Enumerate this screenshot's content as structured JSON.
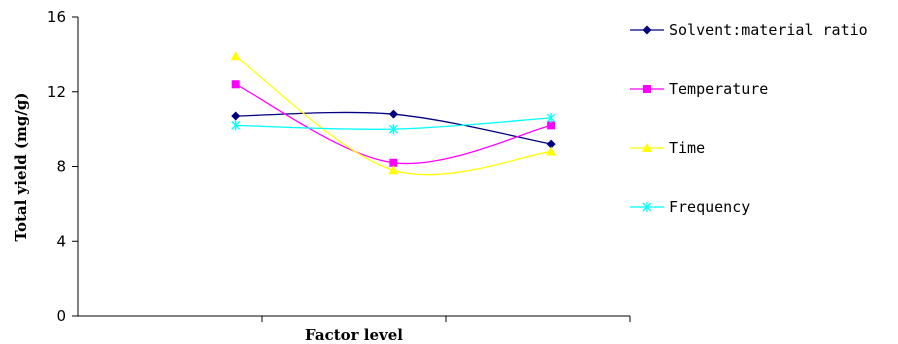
{
  "chart_data": {
    "type": "line",
    "title": "",
    "xlabel": "Factor  level",
    "ylabel": "Total yield (mg/g)",
    "x": [
      1,
      2,
      3
    ],
    "xlim": [
      0,
      3.5
    ],
    "ylim": [
      0,
      16
    ],
    "yticks": [
      0,
      4,
      8,
      12,
      16
    ],
    "ytick_labels": [
      "0",
      "4",
      "8",
      "12",
      "16"
    ],
    "grid": false,
    "legend_position": "right",
    "smooth": true,
    "series": [
      {
        "name": "Solvent:material ratio",
        "color": "#000080",
        "marker": "diamond",
        "values": [
          10.7,
          10.8,
          9.2
        ]
      },
      {
        "name": "Temperature",
        "color": "#FF00FF",
        "marker": "square",
        "values": [
          12.4,
          8.2,
          10.2
        ]
      },
      {
        "name": "Time",
        "color": "#FFFF00",
        "marker": "triangle",
        "values": [
          13.9,
          7.8,
          8.8
        ]
      },
      {
        "name": "Frequency",
        "color": "#00FFFF",
        "marker": "star",
        "values": [
          10.2,
          10.0,
          10.6
        ]
      }
    ]
  }
}
